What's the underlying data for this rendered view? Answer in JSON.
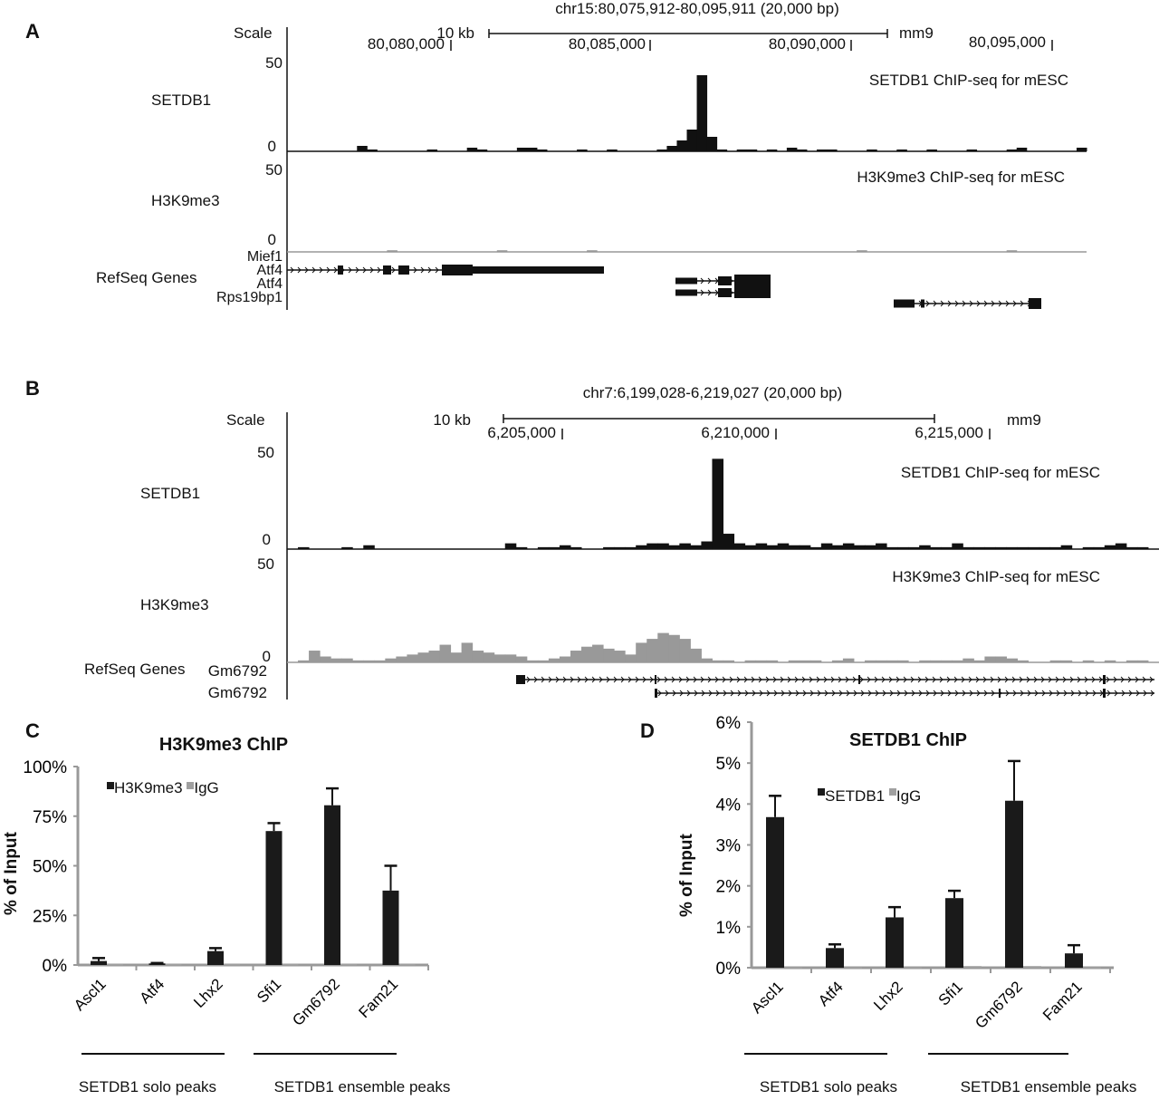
{
  "panels": {
    "a": "A",
    "b": "B",
    "c": "C",
    "d": "D"
  },
  "track_a": {
    "region": "chr15:80,075,912-80,095,911 (20,000 bp)",
    "scale_label": "Scale",
    "scale_bar": "10 kb",
    "assembly": "mm9",
    "positions": [
      "80,080,000",
      "80,085,000",
      "80,090,000",
      "80,095,000"
    ],
    "setdb1": {
      "label": "SETDB1",
      "max": "50",
      "min": "0",
      "desc": "SETDB1 ChIP-seq for mESC",
      "signal": [
        0,
        0,
        0,
        0,
        0,
        0,
        0,
        3,
        1,
        0,
        0,
        0,
        0,
        0,
        1,
        0,
        0,
        0,
        2,
        1,
        0,
        0,
        0,
        2,
        2,
        1,
        0,
        0,
        0,
        1,
        0,
        0,
        1,
        0,
        0,
        0,
        0,
        1,
        3,
        6,
        12,
        42,
        8,
        1,
        0,
        1,
        1,
        0,
        1,
        0,
        2,
        1,
        0,
        1,
        1,
        0,
        0,
        0,
        1,
        0,
        0,
        1,
        0,
        0,
        1,
        0,
        0,
        0,
        1,
        0,
        0,
        0,
        1,
        2,
        0,
        0,
        0,
        0,
        0,
        2
      ]
    },
    "h3k9me3": {
      "label": "H3K9me3",
      "max": "50",
      "min": "0",
      "desc": "H3K9me3 ChIP-seq for mESC",
      "signal": [
        0,
        0,
        0,
        0,
        0,
        0,
        0,
        0,
        0,
        0,
        1,
        0,
        0,
        0,
        0,
        0,
        0,
        0,
        0,
        0,
        0,
        1,
        0,
        0,
        0,
        0,
        0,
        0,
        0,
        0,
        1,
        0,
        0,
        0,
        0,
        0,
        0,
        0,
        0,
        0,
        0,
        0,
        0,
        0,
        0,
        0,
        0,
        0,
        0,
        0,
        0,
        0,
        0,
        0,
        0,
        0,
        0,
        1,
        0,
        0,
        0,
        0,
        0,
        0,
        0,
        0,
        0,
        0,
        0,
        0,
        0,
        0,
        1,
        0,
        0,
        0,
        0,
        0,
        0,
        0
      ]
    },
    "refseq_label": "RefSeq Genes",
    "genes": [
      "Mief1",
      "Atf4",
      "Atf4",
      "Rps19bp1"
    ]
  },
  "track_b": {
    "region": "chr7:6,199,028-6,219,027 (20,000 bp)",
    "scale_label": "Scale",
    "scale_bar": "10 kb",
    "assembly": "mm9",
    "positions": [
      "6,205,000",
      "6,210,000",
      "6,215,000"
    ],
    "setdb1": {
      "label": "SETDB1",
      "max": "50",
      "min": "0",
      "desc": "SETDB1 ChIP-seq for mESC",
      "signal": [
        0,
        1,
        0,
        0,
        0,
        1,
        0,
        2,
        0,
        0,
        0,
        0,
        0,
        0,
        0,
        0,
        0,
        0,
        0,
        0,
        3,
        1,
        0,
        1,
        1,
        2,
        1,
        0,
        0,
        1,
        1,
        1,
        2,
        3,
        3,
        2,
        3,
        2,
        4,
        47,
        8,
        3,
        2,
        3,
        2,
        3,
        2,
        2,
        1,
        3,
        2,
        3,
        2,
        2,
        3,
        1,
        1,
        1,
        2,
        1,
        1,
        3,
        1,
        1,
        1,
        1,
        1,
        1,
        1,
        1,
        1,
        2,
        0,
        1,
        1,
        2,
        3,
        1,
        1,
        0
      ]
    },
    "h3k9me3": {
      "label": "H3K9me3",
      "max": "50",
      "min": "0",
      "desc": "H3K9me3 ChIP-seq for mESC",
      "signal": [
        0,
        1,
        6,
        3,
        2,
        2,
        1,
        1,
        1,
        2,
        3,
        4,
        5,
        6,
        9,
        5,
        10,
        6,
        5,
        4,
        4,
        3,
        1,
        1,
        2,
        3,
        6,
        8,
        9,
        7,
        6,
        4,
        10,
        12,
        15,
        14,
        12,
        7,
        2,
        1,
        1,
        0,
        1,
        1,
        1,
        0,
        1,
        1,
        1,
        0,
        1,
        2,
        0,
        1,
        1,
        1,
        1,
        0,
        1,
        1,
        1,
        1,
        2,
        1,
        3,
        3,
        2,
        1,
        0,
        0,
        1,
        1,
        0,
        1,
        0,
        1,
        0,
        1,
        1,
        0
      ]
    },
    "refseq_label": "RefSeq Genes",
    "genes": [
      "Gm6792",
      "Gm6792"
    ]
  },
  "chart_data": [
    {
      "type": "bar",
      "title": "H3K9me3 ChIP",
      "ylabel": "% of Input",
      "ylim": [
        0,
        100
      ],
      "yticks": [
        "0%",
        "25%",
        "50%",
        "75%",
        "100%"
      ],
      "categories": [
        "Ascl1",
        "Atf4",
        "Lhx2",
        "Sfi1",
        "Gm6792",
        "Fam21"
      ],
      "series": [
        {
          "name": "H3K9me3",
          "color": "#1a1a1a",
          "values": [
            2,
            0.8,
            7,
            67.5,
            80.5,
            37.5
          ],
          "error": [
            1.5,
            0.2,
            1.5,
            4,
            8.5,
            12.5
          ]
        },
        {
          "name": "IgG",
          "color": "#a0a0a0",
          "values": [
            0.5,
            0.5,
            0.5,
            0.5,
            0.5,
            0.5
          ]
        }
      ],
      "groups": [
        "SETDB1 solo peaks",
        "SETDB1 ensemble peaks"
      ],
      "legend": "top-left"
    },
    {
      "type": "bar",
      "title": "SETDB1 ChIP",
      "ylabel": "% of Input",
      "ylim": [
        0,
        6
      ],
      "yticks": [
        "0%",
        "1%",
        "2%",
        "3%",
        "4%",
        "5%",
        "6%"
      ],
      "categories": [
        "Ascl1",
        "Atf4",
        "Lhx2",
        "Sfi1",
        "Gm6792",
        "Fam21"
      ],
      "series": [
        {
          "name": "SETDB1",
          "color": "#1a1a1a",
          "values": [
            3.68,
            0.48,
            1.23,
            1.7,
            4.08,
            0.35
          ],
          "error": [
            0.52,
            0.09,
            0.25,
            0.18,
            0.97,
            0.2
          ]
        },
        {
          "name": "IgG",
          "color": "#a0a0a0",
          "values": [
            0.01,
            0.01,
            0.01,
            0.04,
            0.04,
            0.01
          ]
        }
      ],
      "groups": [
        "SETDB1 solo peaks",
        "SETDB1 ensemble peaks"
      ],
      "legend": "top-center"
    }
  ]
}
